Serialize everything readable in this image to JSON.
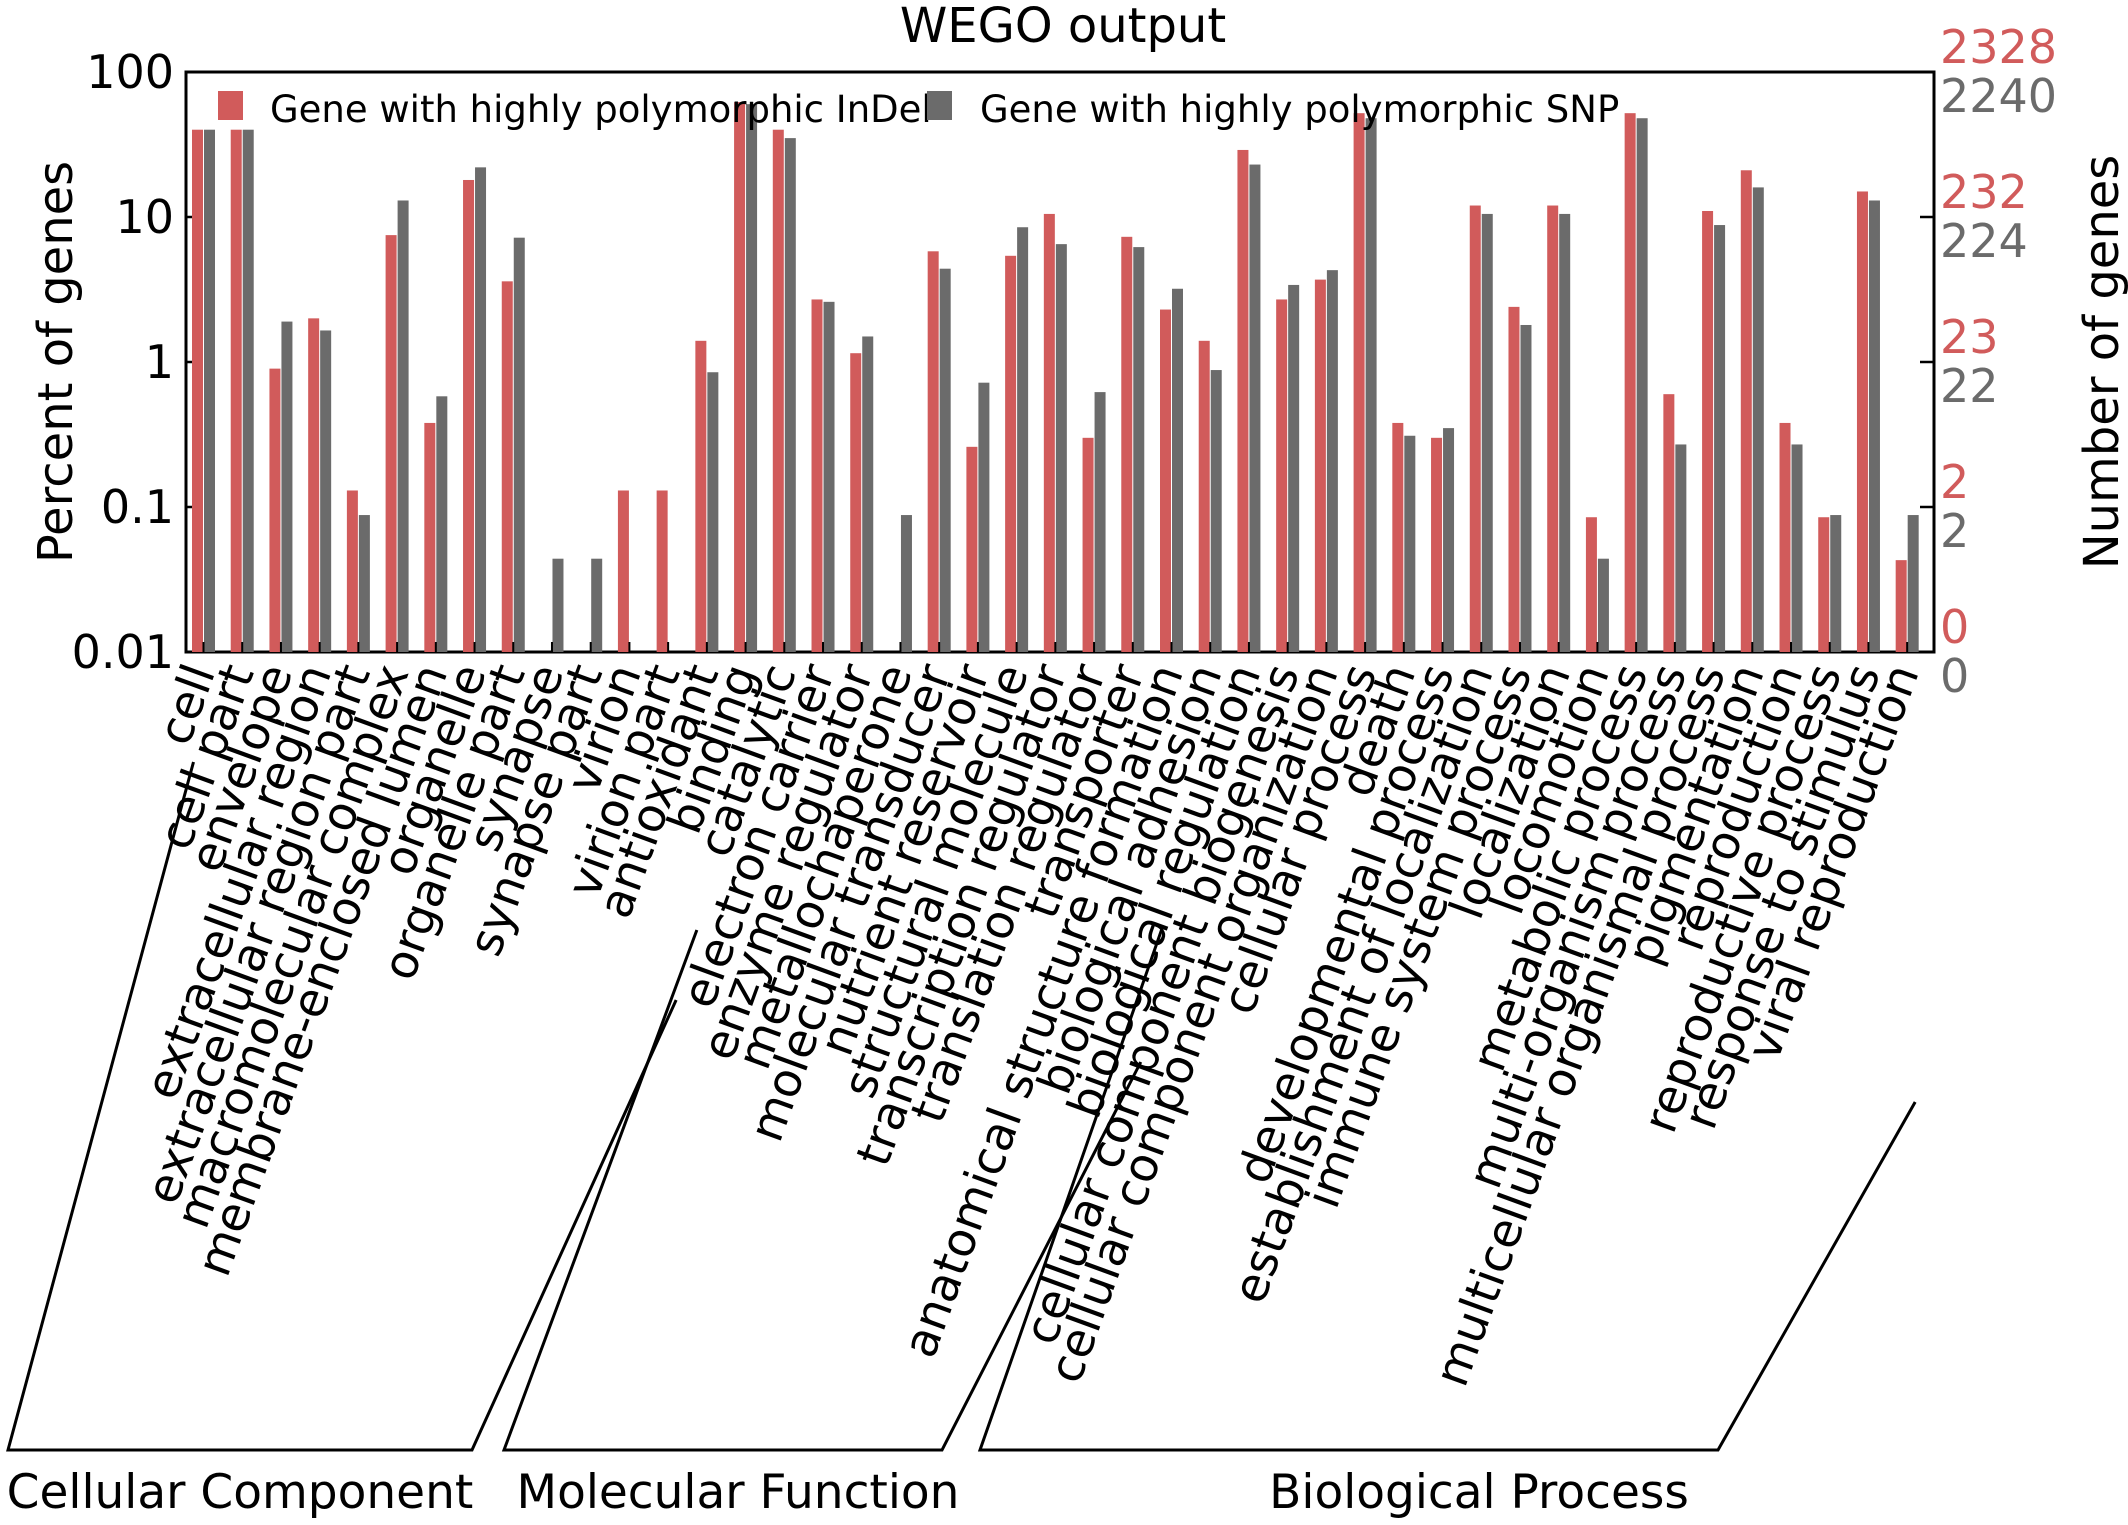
{
  "chart_data": {
    "type": "bar",
    "title": "WEGO output",
    "ylabel": "Percent of genes",
    "ylabel_right": "Number of genes",
    "yscale": "log",
    "ylim": [
      0.01,
      100
    ],
    "yticks": [
      "100",
      "10",
      "1",
      "0.1",
      "0.01"
    ],
    "right_ticks": {
      "indel": [
        "2328",
        "232",
        "23",
        "2",
        "0"
      ],
      "snp": [
        "2240",
        "224",
        "22",
        "2",
        "0"
      ]
    },
    "colors": {
      "indel": "#d15b5b",
      "snp": "#6b6b6b"
    },
    "legend_position": "top",
    "categories": [
      "cell",
      "cell part",
      "envelope",
      "extracellular region",
      "extracellular region part",
      "macromolecular complex",
      "membrane-enclosed lumen",
      "organelle",
      "organelle part",
      "synapse",
      "synapse part",
      "virion",
      "virion part",
      "antioxidant",
      "binding",
      "catalytic",
      "electron carrier",
      "enzyme regulator",
      "metallochaperone",
      "molecular transducer",
      "nutrient reservoir",
      "structural molecule",
      "transcription regulator",
      "translation regulator",
      "transporter",
      "anatomical structure formation",
      "biological adhesion",
      "biological regulation",
      "cellular component biogenesis",
      "cellular component organization",
      "cellular process",
      "death",
      "developmental process",
      "establishment of localization",
      "immune system process",
      "localization",
      "locomotion",
      "metabolic process",
      "multi-organism process",
      "multicellular organismal process",
      "pigmentation",
      "reproduction",
      "reproductive process",
      "response to stimulus",
      "viral reproduction"
    ],
    "series": [
      {
        "name": "Gene with highly polymorphic InDel",
        "values": [
          40,
          40,
          0.9,
          2.0,
          0.13,
          7.5,
          0.38,
          18,
          3.6,
          null,
          null,
          0.13,
          0.13,
          1.4,
          62,
          40,
          2.7,
          1.15,
          null,
          5.8,
          0.26,
          5.4,
          10.5,
          0.3,
          7.3,
          2.3,
          1.4,
          29,
          2.7,
          3.7,
          52,
          0.38,
          0.3,
          12,
          2.4,
          12,
          0.085,
          52,
          0.6,
          11,
          21,
          0.38,
          0.085,
          15,
          0.043
        ]
      },
      {
        "name": "Gene with highly polymorphic SNP",
        "values": [
          40,
          40,
          1.9,
          1.65,
          0.088,
          13,
          0.58,
          22,
          7.2,
          0.044,
          0.044,
          null,
          null,
          0.85,
          60,
          35,
          2.6,
          1.5,
          0.088,
          4.4,
          0.72,
          8.5,
          6.5,
          0.62,
          6.2,
          3.2,
          0.88,
          23,
          3.4,
          4.3,
          48,
          0.31,
          0.35,
          10.5,
          1.8,
          10.5,
          0.044,
          48,
          0.27,
          8.8,
          16,
          0.27,
          0.088,
          13,
          0.088
        ]
      }
    ],
    "groups": [
      {
        "label": "Cellular Component",
        "start": 0,
        "end": 12
      },
      {
        "label": "Molecular Function",
        "start": 13,
        "end": 24
      },
      {
        "label": "Biological Process",
        "start": 25,
        "end": 44
      }
    ]
  }
}
